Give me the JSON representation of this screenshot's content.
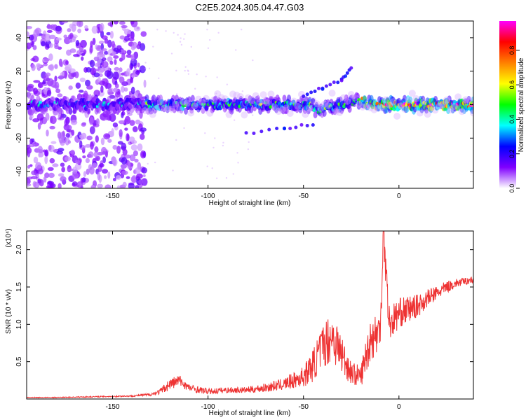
{
  "title": "C2E5.2024.305.04.47.G03",
  "chart_data": [
    {
      "type": "heatmap",
      "xlabel": "Height of straight line (km)",
      "ylabel": "Frequency (Hz)",
      "xlim": [
        -195,
        39
      ],
      "ylim": [
        -50,
        50
      ],
      "x_ticks": [
        -150,
        -100,
        -50,
        0
      ],
      "y_ticks": [
        -40,
        -20,
        0,
        20,
        40
      ],
      "colorbar": {
        "label": "Normalized spectral amplitude",
        "range": [
          0,
          0.97
        ],
        "ticks": [
          0.0,
          0.2,
          0.4,
          0.6,
          0.8
        ],
        "colors": [
          "#ffffff",
          "#8000ff",
          "#0000ff",
          "#00ffff",
          "#00ff00",
          "#ffff00",
          "#ff8000",
          "#ff0000",
          "#ff00ff"
        ]
      },
      "features": [
        {
          "x_range": [
            -195,
            -133
          ],
          "y_range": [
            -50,
            50
          ],
          "amplitude": 0.08,
          "note_kind": "scattered noise"
        },
        {
          "x_range": [
            -195,
            39
          ],
          "center_freq": 0,
          "amplitude_range": [
            0.2,
            0.97
          ],
          "note_kind": "main band near 0 Hz"
        },
        {
          "points": [
            [
              -50,
              5
            ],
            [
              -40,
              10
            ],
            [
              -30,
              15
            ],
            [
              -25,
              22
            ]
          ],
          "amplitude": 0.2,
          "note_kind": "rising trace"
        },
        {
          "points": [
            [
              -80,
              -17
            ],
            [
              -60,
              -14
            ],
            [
              -45,
              -12
            ]
          ],
          "amplitude": 0.2,
          "note_kind": "lower trace"
        }
      ]
    },
    {
      "type": "line",
      "xlabel": "Height of straight line (km)",
      "ylabel": "SNR (10 * v/v)",
      "y_multiplier": "(x10⁴)",
      "xlim": [
        -195,
        39
      ],
      "ylim": [
        0,
        2.25
      ],
      "x_ticks": [
        -150,
        -100,
        -50,
        0
      ],
      "y_ticks": [
        0.5,
        1.0,
        1.5,
        2.0
      ],
      "y_tick_labels": [
        "0.5",
        "1.0",
        "1.5",
        "2.0"
      ],
      "color": "#ee3333",
      "series": [
        {
          "x": [
            -195,
            -180,
            -160,
            -140,
            -130,
            -125,
            -120,
            -115,
            -110,
            -100,
            -90,
            -80,
            -70,
            -60,
            -50,
            -45,
            -40,
            -35,
            -30,
            -25,
            -20,
            -17,
            -15,
            -10,
            -8,
            -5,
            0,
            5,
            10,
            15,
            20,
            25,
            30,
            35,
            39
          ],
          "y": [
            0.02,
            0.02,
            0.03,
            0.04,
            0.06,
            0.1,
            0.2,
            0.25,
            0.15,
            0.1,
            0.12,
            0.12,
            0.15,
            0.2,
            0.3,
            0.45,
            0.7,
            0.85,
            0.6,
            0.35,
            0.3,
            0.6,
            0.8,
            0.9,
            2.2,
            1.0,
            1.15,
            1.2,
            1.25,
            1.35,
            1.42,
            1.5,
            1.55,
            1.58,
            1.6
          ],
          "noise": [
            0.005,
            0.005,
            0.008,
            0.01,
            0.02,
            0.04,
            0.08,
            0.08,
            0.05,
            0.04,
            0.04,
            0.04,
            0.06,
            0.08,
            0.14,
            0.22,
            0.3,
            0.35,
            0.28,
            0.15,
            0.15,
            0.25,
            0.3,
            0.3,
            0.3,
            0.25,
            0.2,
            0.18,
            0.15,
            0.12,
            0.1,
            0.08,
            0.06,
            0.05,
            0.05
          ]
        }
      ]
    }
  ]
}
